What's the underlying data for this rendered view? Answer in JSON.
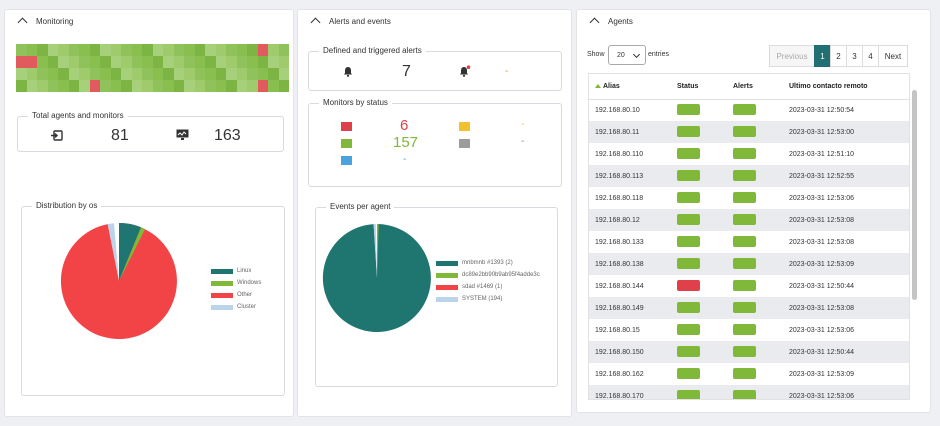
{
  "monitoring": {
    "title": "Monitoring",
    "total_legend": "Total agents and monitors",
    "agents_count": "81",
    "monitors_count": "163",
    "distribution_legend": "Distribution by os",
    "heatmap_rows": [
      "gggggggggggggggggggggggrggg*b",
      "rrgggggggggggggggggggggggggg",
      "ggggggggggggggggggggggggggggg",
      "gggggggrgggggggggggggggrgggg"
    ],
    "os_legend": [
      {
        "label": "Linux",
        "color": "#1f7570"
      },
      {
        "label": "Windows",
        "color": "#80b83a"
      },
      {
        "label": "Other",
        "color": "#f24447"
      },
      {
        "label": "Cluster",
        "color": "#bcd4ea"
      }
    ]
  },
  "alerts": {
    "title": "Alerts and events",
    "defined_legend": "Defined and triggered alerts",
    "defined_count": "7",
    "triggered_count": "-",
    "monitors_legend": "Monitors by status",
    "status": {
      "critical": "6",
      "warning": "-",
      "unknown_orange": "-",
      "normal": "157",
      "not_init": "-",
      "other": "-"
    },
    "events_legend": "Events per agent",
    "events_legend_items": [
      {
        "label": "mnbmnb #1393 (2)",
        "color": "#1f7570"
      },
      {
        "label": "dc89e2bb90b9ab95f4adde3c",
        "color": "#80b83a"
      },
      {
        "label": "sdad #1469 (1)",
        "color": "#f24447"
      },
      {
        "label": "SYSTEM (194)",
        "color": "#bcd4ea"
      }
    ]
  },
  "agents": {
    "title": "Agents",
    "show_label": "Show",
    "entries_label": "entries",
    "page_size": "20",
    "pager": {
      "previous": "Previous",
      "pages": [
        "1",
        "2",
        "3",
        "4"
      ],
      "next": "Next"
    },
    "columns": [
      "Alias",
      "Status",
      "Alerts",
      "Ultimo contacto remoto"
    ],
    "rows": [
      {
        "alias": "192.168.80.10",
        "status": "ok",
        "alerts": "ok",
        "contact": "2023-03-31 12:50:54"
      },
      {
        "alias": "192.168.80.11",
        "status": "ok",
        "alerts": "ok",
        "contact": "2023-03-31 12:53:00"
      },
      {
        "alias": "192.168.80.110",
        "status": "ok",
        "alerts": "ok",
        "contact": "2023-03-31 12:51:10"
      },
      {
        "alias": "192.168.80.113",
        "status": "ok",
        "alerts": "ok",
        "contact": "2023-03-31 12:52:55"
      },
      {
        "alias": "192.168.80.118",
        "status": "ok",
        "alerts": "ok",
        "contact": "2023-03-31 12:53:06"
      },
      {
        "alias": "192.168.80.12",
        "status": "ok",
        "alerts": "ok",
        "contact": "2023-03-31 12:53:08"
      },
      {
        "alias": "192.168.80.133",
        "status": "ok",
        "alerts": "ok",
        "contact": "2023-03-31 12:53:08"
      },
      {
        "alias": "192.168.80.138",
        "status": "ok",
        "alerts": "ok",
        "contact": "2023-03-31 12:53:09"
      },
      {
        "alias": "192.168.80.144",
        "status": "critical",
        "alerts": "ok",
        "contact": "2023-03-31 12:50:44"
      },
      {
        "alias": "192.168.80.149",
        "status": "ok",
        "alerts": "ok",
        "contact": "2023-03-31 12:53:08"
      },
      {
        "alias": "192.168.80.15",
        "status": "ok",
        "alerts": "ok",
        "contact": "2023-03-31 12:53:06"
      },
      {
        "alias": "192.168.80.150",
        "status": "ok",
        "alerts": "ok",
        "contact": "2023-03-31 12:50:44"
      },
      {
        "alias": "192.168.80.162",
        "status": "ok",
        "alerts": "ok",
        "contact": "2023-03-31 12:53:09"
      },
      {
        "alias": "192.168.80.170",
        "status": "ok",
        "alerts": "ok",
        "contact": "2023-03-31 12:53:06"
      }
    ]
  },
  "colors": {
    "accent": "#1f6f73",
    "ok": "#80b83a",
    "critical": "#e0404a",
    "warning": "#f2c12e",
    "unknown": "#9c9c9c",
    "not_init": "#4aa3df",
    "orange": "#f28c1e"
  }
}
